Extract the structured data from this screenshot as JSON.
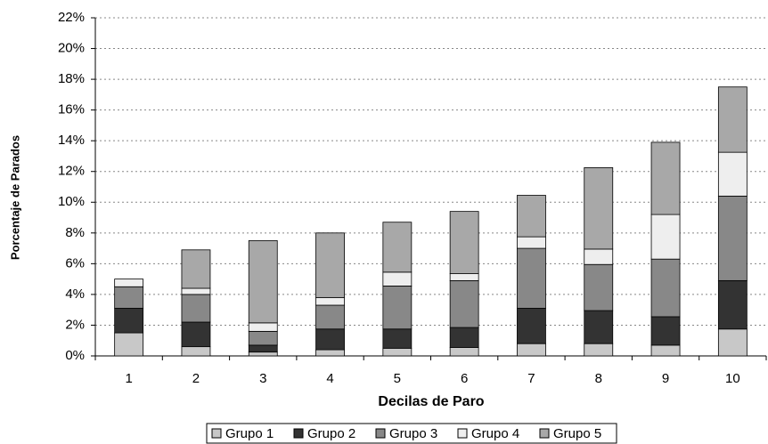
{
  "chart_data": {
    "type": "stacked-bar",
    "x_label": "Decilas de Paro",
    "y_label": "Porcentaje de Parados",
    "categories": [
      "1",
      "2",
      "3",
      "4",
      "5",
      "6",
      "7",
      "8",
      "9",
      "10"
    ],
    "series": [
      {
        "name": "Grupo 1",
        "color": "#c8c8c8",
        "values": [
          1.5,
          0.6,
          0.25,
          0.4,
          0.5,
          0.55,
          0.8,
          0.8,
          0.7,
          1.75
        ]
      },
      {
        "name": "Grupo 2",
        "color": "#333333",
        "values": [
          1.6,
          1.6,
          0.45,
          1.35,
          1.25,
          1.3,
          2.3,
          2.15,
          1.85,
          3.15
        ]
      },
      {
        "name": "Grupo 3",
        "color": "#888888",
        "values": [
          1.4,
          1.8,
          0.9,
          1.55,
          2.8,
          3.05,
          3.9,
          3.0,
          3.75,
          5.5
        ]
      },
      {
        "name": "Grupo 4",
        "color": "#eeeeee",
        "values": [
          0.5,
          0.4,
          0.55,
          0.5,
          0.9,
          0.45,
          0.75,
          1.0,
          2.9,
          2.85
        ]
      },
      {
        "name": "Grupo 5",
        "color": "#a8a8a8",
        "values": [
          0,
          2.5,
          5.35,
          4.2,
          3.25,
          4.05,
          2.7,
          5.3,
          4.7,
          4.25
        ]
      }
    ],
    "ylim": [
      0,
      22
    ],
    "yticks": [
      {
        "value": 0,
        "label": "0%"
      },
      {
        "value": 2,
        "label": "2%"
      },
      {
        "value": 4,
        "label": "4%"
      },
      {
        "value": 6,
        "label": "6%"
      },
      {
        "value": 8,
        "label": "8%"
      },
      {
        "value": 10,
        "label": "10%"
      },
      {
        "value": 12,
        "label": "12%"
      },
      {
        "value": 14,
        "label": "14%"
      },
      {
        "value": 16,
        "label": "16%"
      },
      {
        "value": 18,
        "label": "18%"
      },
      {
        "value": 20,
        "label": "20%"
      },
      {
        "value": 22,
        "label": "22%"
      }
    ],
    "grid": true,
    "legend": "bottom"
  }
}
